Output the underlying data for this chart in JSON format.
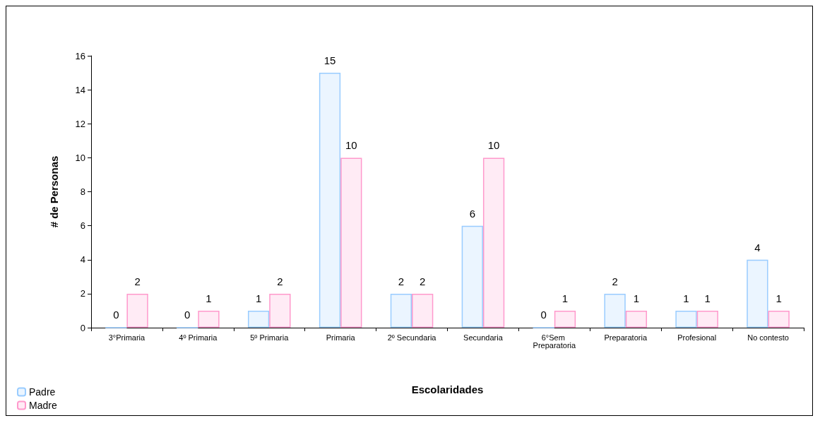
{
  "chart_data": {
    "type": "bar",
    "xlabel": "Escolaridades",
    "ylabel": "# de Personas",
    "categories": [
      "3°Primaria",
      "4º Primaria",
      "5º Primaria",
      "Primaria",
      "2º Secundaria",
      "Secundaria",
      "6°Sem Preparatoria",
      "Preparatoria",
      "Profesional",
      "No contesto"
    ],
    "series": [
      {
        "name": "Padre",
        "color": "#99ccff",
        "values": [
          0,
          0,
          1,
          15,
          2,
          6,
          0,
          2,
          1,
          4
        ]
      },
      {
        "name": "Madre",
        "color": "#ff99cc",
        "values": [
          2,
          1,
          2,
          10,
          2,
          10,
          1,
          1,
          1,
          1
        ]
      }
    ],
    "ylim": [
      0,
      16
    ],
    "yticks": [
      0,
      2,
      4,
      6,
      8,
      10,
      12,
      14,
      16
    ],
    "grid": false,
    "legend": "bottom left",
    "data_labels": true
  }
}
